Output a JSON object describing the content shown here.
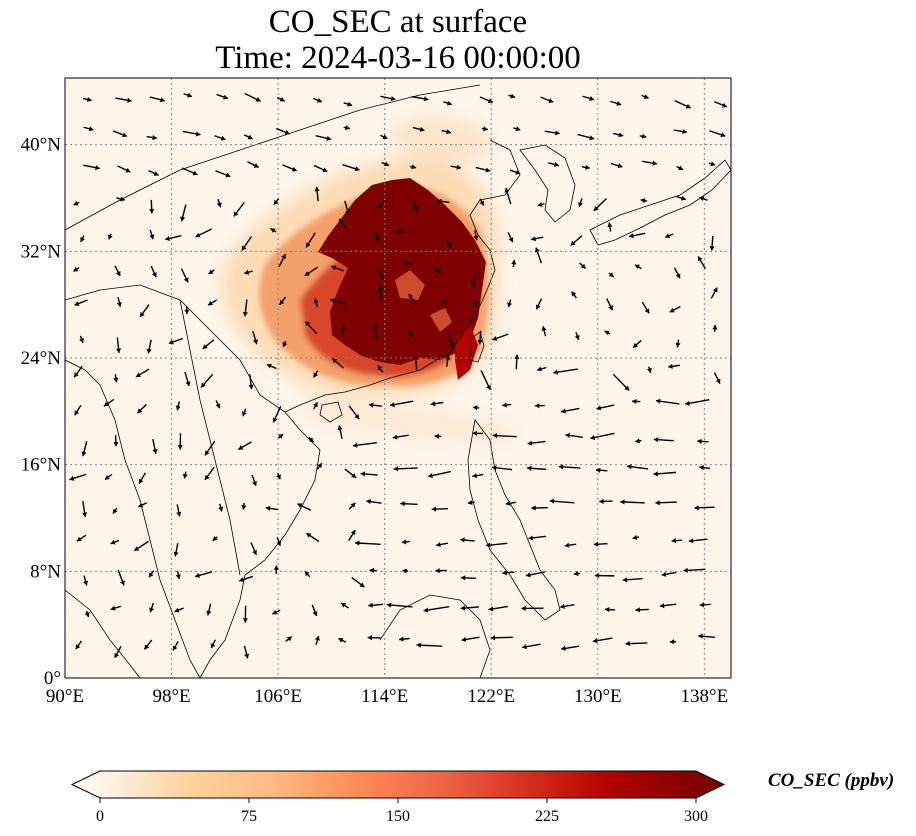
{
  "title": {
    "line1": "CO_SEC at surface",
    "line2": "Time: 2024-03-16 00:00:00"
  },
  "map": {
    "lon_range": [
      90,
      140
    ],
    "lat_range": [
      0,
      45
    ],
    "lon_ticks": [
      {
        "value": 90,
        "label": "90°E"
      },
      {
        "value": 98,
        "label": "98°E"
      },
      {
        "value": 106,
        "label": "106°E"
      },
      {
        "value": 114,
        "label": "114°E"
      },
      {
        "value": 122,
        "label": "122°E"
      },
      {
        "value": 130,
        "label": "130°E"
      },
      {
        "value": 138,
        "label": "138°E"
      }
    ],
    "lat_ticks": [
      {
        "value": 0,
        "label": "0°"
      },
      {
        "value": 8,
        "label": "8°N"
      },
      {
        "value": 16,
        "label": "16°N"
      },
      {
        "value": 24,
        "label": "24°N"
      },
      {
        "value": 32,
        "label": "32°N"
      },
      {
        "value": 40,
        "label": "40°N"
      }
    ],
    "grid": true,
    "background_color": "#fff5eb",
    "high_color": "#7f0000"
  },
  "colorbar": {
    "title": "CO_SEC (ppbv)",
    "ticks": [
      "0",
      "75",
      "150",
      "225",
      "300"
    ],
    "range": [
      0,
      300
    ],
    "extend": "both",
    "colors": [
      "#fff5eb",
      "#fdd49e",
      "#fdbb84",
      "#fc8d59",
      "#ef6548",
      "#d7301f",
      "#b30000",
      "#7f0000"
    ]
  }
}
